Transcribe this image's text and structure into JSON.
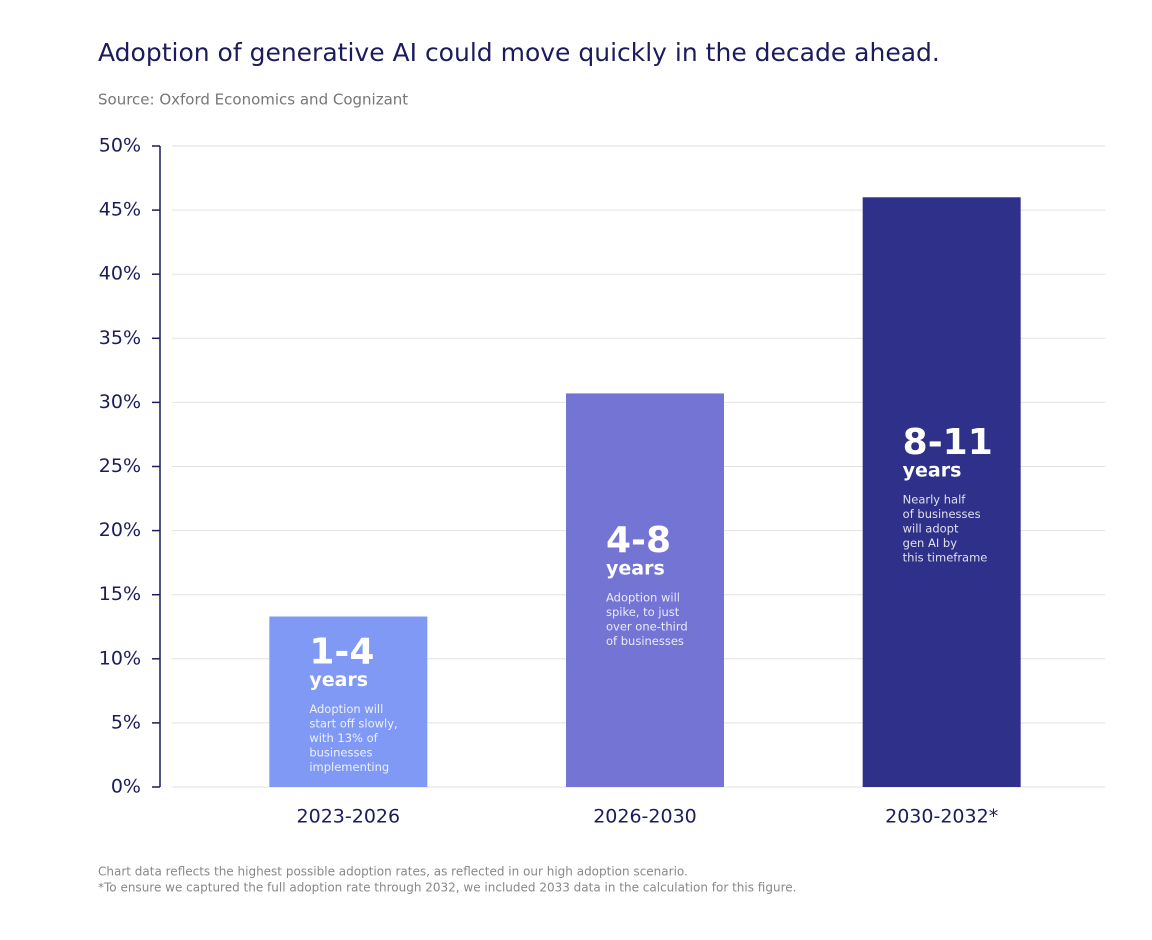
{
  "chart_data": {
    "type": "bar",
    "title": "Adoption of generative AI could move quickly  in the decade ahead.",
    "subtitle": "Source: Oxford Economics and Cognizant",
    "categories": [
      "2023-2026",
      "2026-2030",
      "2030-2032*"
    ],
    "values": [
      13.3,
      30.7,
      46
    ],
    "colors": [
      "#8099f4",
      "#7474d4",
      "#2e3089"
    ],
    "ylim": [
      0,
      50
    ],
    "yticks": [
      {
        "value": 0,
        "label": "0%"
      },
      {
        "value": 5,
        "label": "5%"
      },
      {
        "value": 10,
        "label": "10%"
      },
      {
        "value": 15,
        "label": "15%"
      },
      {
        "value": 20,
        "label": "20%"
      },
      {
        "value": 25,
        "label": "25%"
      },
      {
        "value": 30,
        "label": "30%"
      },
      {
        "value": 35,
        "label": "35%"
      },
      {
        "value": 40,
        "label": "40%"
      },
      {
        "value": 45,
        "label": "45%"
      },
      {
        "value": 50,
        "label": "50%"
      }
    ],
    "grid": true,
    "annotations": [
      {
        "headline": "1-4",
        "unit": "years",
        "description_lines": [
          "Adoption will",
          "start off slowly,",
          "with 13% of",
          "businesses",
          "implementing"
        ]
      },
      {
        "headline": "4-8",
        "unit": "years",
        "description_lines": [
          "Adoption will",
          "spike, to just",
          "over one-third",
          "of businesses"
        ]
      },
      {
        "headline": "8-11",
        "unit": "years",
        "description_lines": [
          "Nearly half",
          "of businesses",
          "will adopt",
          "gen AI by",
          "this timeframe"
        ]
      }
    ],
    "footnotes": [
      "Chart data reflects the highest possible adoption rates, as reflected in our high adoption scenario.",
      "*To ensure we captured the full adoption rate through 2032, we included 2033 data in the calculation for this figure."
    ]
  }
}
